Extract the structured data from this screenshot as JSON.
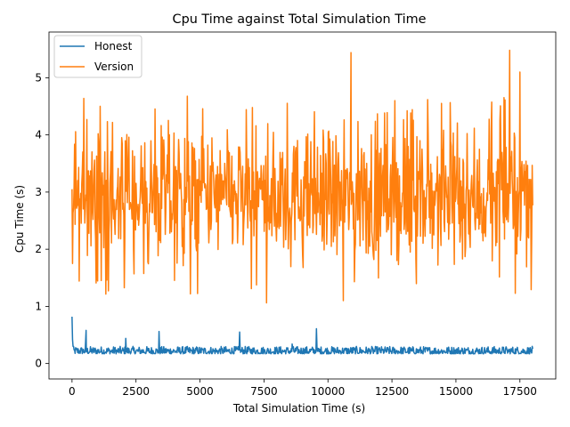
{
  "chart_data": {
    "type": "line",
    "title": "Cpu Time against Total Simulation Time",
    "xlabel": "Total Simulation Time (s)",
    "ylabel": "Cpu Time (s)",
    "xlim": [
      -900,
      18900
    ],
    "ylim": [
      -0.27,
      5.8
    ],
    "xticks": [
      0,
      2500,
      5000,
      7500,
      10000,
      12500,
      15000,
      17500
    ],
    "xtick_labels": [
      "0",
      "2500",
      "5000",
      "7500",
      "10000",
      "12500",
      "15000",
      "17500"
    ],
    "yticks": [
      0,
      1,
      2,
      3,
      4,
      5
    ],
    "ytick_labels": [
      "0",
      "1",
      "2",
      "3",
      "4",
      "5"
    ],
    "grid": false,
    "legend_position": "top-left",
    "series": [
      {
        "name": "Honest",
        "color": "#1f77b4",
        "x_start": 0,
        "x_end": 18000,
        "n_points": 900,
        "typical_range": [
          0.17,
          0.3
        ],
        "peaks": [
          {
            "x": 0,
            "y": 0.82
          },
          {
            "x": 550,
            "y": 0.58
          },
          {
            "x": 2100,
            "y": 0.44
          },
          {
            "x": 3400,
            "y": 0.56
          },
          {
            "x": 6550,
            "y": 0.55
          },
          {
            "x": 8600,
            "y": 0.34
          },
          {
            "x": 9550,
            "y": 0.61
          }
        ]
      },
      {
        "name": "Version",
        "color": "#ff7f0e",
        "x_start": 0,
        "x_end": 18000,
        "n_points": 900,
        "typical_range": [
          1.1,
          5.45
        ],
        "peaks": [
          {
            "x": 1100,
            "y": 4.5
          },
          {
            "x": 10900,
            "y": 5.44
          },
          {
            "x": 17100,
            "y": 5.48
          },
          {
            "x": 17500,
            "y": 5.1
          },
          {
            "x": 7600,
            "y": 1.06
          },
          {
            "x": 10600,
            "y": 1.1
          }
        ]
      }
    ]
  }
}
